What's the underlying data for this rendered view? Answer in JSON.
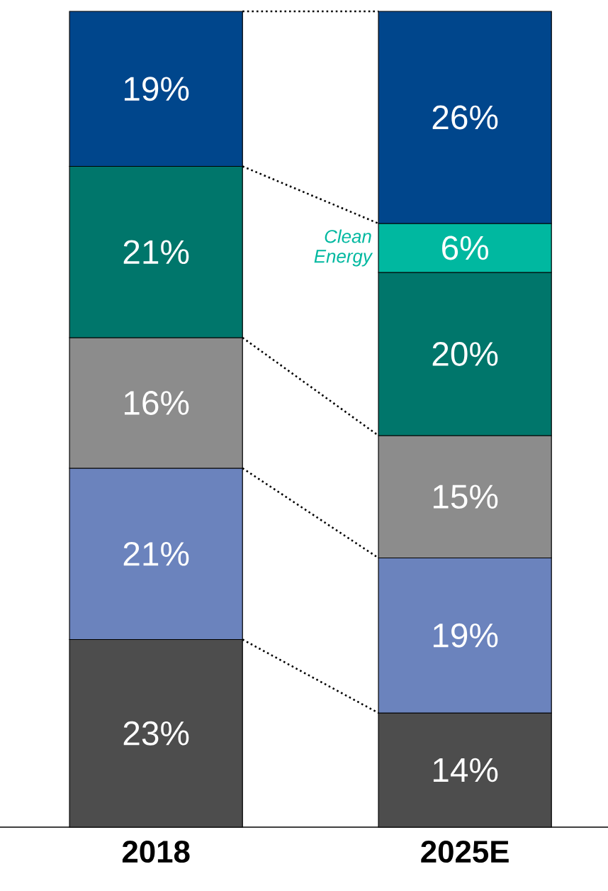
{
  "chart_data": {
    "type": "bar",
    "stacked": true,
    "categories": [
      "2018",
      "2025E"
    ],
    "series": [
      {
        "color": "#4d4d4d",
        "values": [
          23,
          14
        ],
        "value_labels": [
          "23%",
          "14%"
        ]
      },
      {
        "color": "#6b83bd",
        "values": [
          21,
          19
        ],
        "value_labels": [
          "21%",
          "19%"
        ]
      },
      {
        "color": "#8c8c8c",
        "values": [
          16,
          15
        ],
        "value_labels": [
          "16%",
          "15%"
        ]
      },
      {
        "color": "#00766b",
        "values": [
          21,
          20
        ],
        "value_labels": [
          "21%",
          "20%"
        ]
      },
      {
        "name": "Clean Energy",
        "color": "#00b8a0",
        "values": [
          null,
          6
        ],
        "value_labels": [
          null,
          "6%"
        ]
      },
      {
        "color": "#00468c",
        "values": [
          19,
          26
        ],
        "value_labels": [
          "19%",
          "26%"
        ]
      }
    ]
  }
}
